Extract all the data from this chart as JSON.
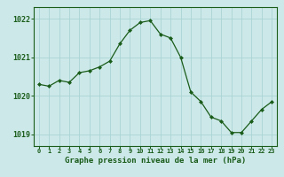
{
  "x": [
    0,
    1,
    2,
    3,
    4,
    5,
    6,
    7,
    8,
    9,
    10,
    11,
    12,
    13,
    14,
    15,
    16,
    17,
    18,
    19,
    20,
    21,
    22,
    23
  ],
  "y": [
    1020.3,
    1020.25,
    1020.4,
    1020.35,
    1020.6,
    1020.65,
    1020.75,
    1020.9,
    1021.35,
    1021.7,
    1021.9,
    1021.95,
    1021.6,
    1021.5,
    1021.0,
    1020.1,
    1019.85,
    1019.45,
    1019.35,
    1019.05,
    1019.05,
    1019.35,
    1019.65,
    1019.85
  ],
  "line_color": "#1a5c1a",
  "marker_color": "#1a5c1a",
  "bg_color": "#cce8e8",
  "grid_color": "#aad4d4",
  "label_color": "#1a5c1a",
  "xlabel": "Graphe pression niveau de la mer (hPa)",
  "ylim": [
    1018.7,
    1022.3
  ],
  "yticks": [
    1019,
    1020,
    1021,
    1022
  ],
  "xticks": [
    0,
    1,
    2,
    3,
    4,
    5,
    6,
    7,
    8,
    9,
    10,
    11,
    12,
    13,
    14,
    15,
    16,
    17,
    18,
    19,
    20,
    21,
    22,
    23
  ]
}
